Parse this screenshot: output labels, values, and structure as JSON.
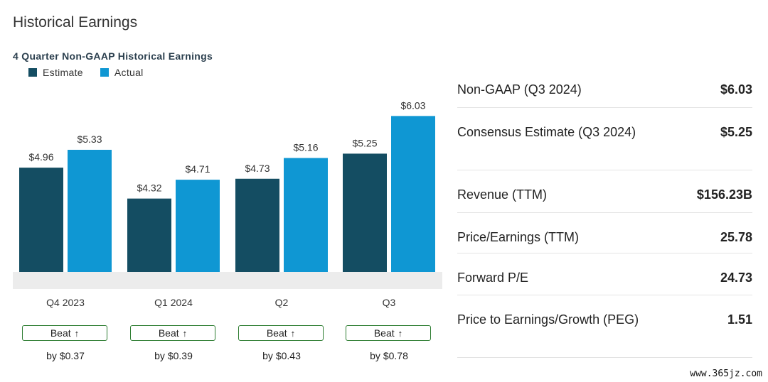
{
  "page": {
    "title": "Historical Earnings",
    "watermark": "www.365jz.com"
  },
  "colors": {
    "estimate": "#144d62",
    "actual": "#0f97d3",
    "beat_border": "#2e7d32",
    "baseline_band": "#ececec"
  },
  "chart_data": {
    "type": "bar",
    "title": "4 Quarter Non-GAAP Historical Earnings",
    "categories": [
      "Q4 2023",
      "Q1 2024",
      "Q2",
      "Q3"
    ],
    "series": [
      {
        "name": "Estimate",
        "values": [
          4.96,
          4.32,
          4.73,
          5.25
        ],
        "labels": [
          "$4.96",
          "$4.32",
          "$4.73",
          "$5.25"
        ]
      },
      {
        "name": "Actual",
        "values": [
          5.33,
          4.71,
          5.16,
          6.03
        ],
        "labels": [
          "$5.33",
          "$4.71",
          "$5.16",
          "$6.03"
        ]
      }
    ],
    "ylim": [
      2.8,
      6.3
    ],
    "grid": false,
    "legend": "top-left",
    "beats": [
      {
        "label": "Beat",
        "arrow": "↑",
        "by": "by $0.37"
      },
      {
        "label": "Beat",
        "arrow": "↑",
        "by": "by $0.39"
      },
      {
        "label": "Beat",
        "arrow": "↑",
        "by": "by $0.43"
      },
      {
        "label": "Beat",
        "arrow": "↑",
        "by": "by $0.78"
      }
    ]
  },
  "stats": [
    {
      "label": "Non-GAAP (Q3 2024)",
      "value": "$6.03"
    },
    {
      "label": "Consensus Estimate (Q3 2024)",
      "value": "$5.25"
    },
    {
      "label": "Revenue (TTM)",
      "value": "$156.23B"
    },
    {
      "label": "Price/Earnings (TTM)",
      "value": "25.78"
    },
    {
      "label": "Forward P/E",
      "value": "24.73"
    },
    {
      "label": "Price to Earnings/Growth (PEG)",
      "value": "1.51"
    }
  ]
}
